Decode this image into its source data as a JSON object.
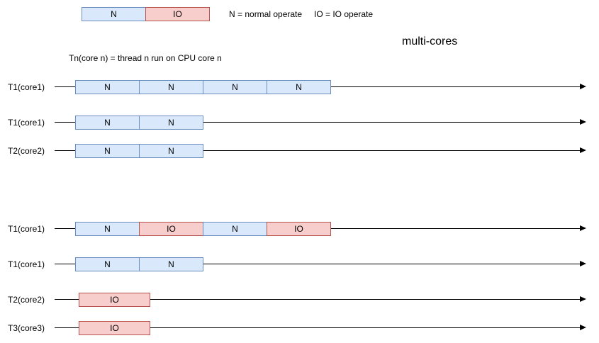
{
  "title": "multi-cores",
  "legend": {
    "box_n": "N",
    "box_io": "IO",
    "text_n": "N = normal operate",
    "text_io": "IO = IO operate"
  },
  "note": "Tn(core n) = thread n run on CPU core n",
  "colors": {
    "n_fill": "#dae8fc",
    "n_stroke": "#6c8ebf",
    "io_fill": "#f8cecc",
    "io_stroke": "#b85450"
  },
  "rows": [
    {
      "label": "T1(core1)",
      "blocks": [
        "N",
        "N",
        "N",
        "N"
      ]
    },
    {
      "label": "T1(core1)",
      "blocks": [
        "N",
        "N"
      ]
    },
    {
      "label": "T2(core2)",
      "blocks": [
        "N",
        "N"
      ]
    },
    {
      "label": "T1(core1)",
      "blocks": [
        "N",
        "IO",
        "N",
        "IO"
      ]
    },
    {
      "label": "T1(core1)",
      "blocks": [
        "N",
        "N"
      ]
    },
    {
      "label": "T2(core2)",
      "blocks": [
        "IO"
      ]
    },
    {
      "label": "T3(core3)",
      "blocks": [
        "IO"
      ]
    }
  ]
}
